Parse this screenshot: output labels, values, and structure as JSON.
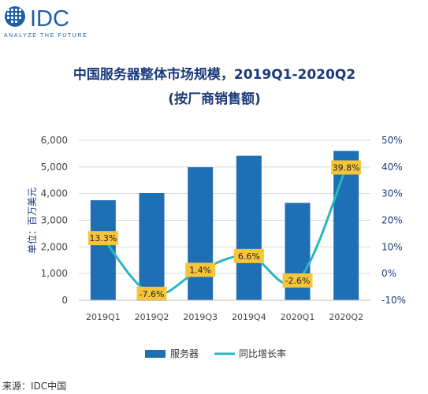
{
  "brand": {
    "name": "IDC",
    "tagline": "ANALYZE THE FUTURE",
    "color": "#1f5fa8"
  },
  "source": "来源：IDC中国",
  "colors": {
    "bar": "#1f6fb5",
    "line": "#2ab7c0",
    "label_bg": "#f6c53a",
    "title": "#1a3a7a",
    "axis_text": "#444444",
    "right_axis_text": "#1a3a7a",
    "grid": "#d9d9d9"
  },
  "chart_data": {
    "type": "bar",
    "title": "中国服务器整体市场规模，2019Q1-2020Q2",
    "subtitle": "(按厂商销售额)",
    "ylabel": "单位：百万美元",
    "categories": [
      "2019Q1",
      "2019Q2",
      "2019Q3",
      "2019Q4",
      "2020Q1",
      "2020Q2"
    ],
    "y_ticks": [
      "0",
      "1,000",
      "2,000",
      "3,000",
      "4,000",
      "5,000",
      "6,000"
    ],
    "y2_ticks": [
      "-10%",
      "0%",
      "10%",
      "20%",
      "30%",
      "40%",
      "50%"
    ],
    "ylim": [
      0,
      6000
    ],
    "y2lim": [
      -10,
      50
    ],
    "grid": true,
    "legend_position": "bottom",
    "series": [
      {
        "name": "服务器",
        "type": "bar",
        "axis": "left",
        "values": [
          3750,
          4020,
          4990,
          5420,
          3650,
          5600
        ]
      },
      {
        "name": "同比增长率",
        "type": "line",
        "axis": "right",
        "values": [
          13.3,
          -7.6,
          1.4,
          6.6,
          -2.6,
          39.8
        ],
        "labels": [
          "13.3%",
          "-7.6%",
          "1.4%",
          "6.6%",
          "-2.6%",
          "39.8%"
        ]
      }
    ]
  }
}
